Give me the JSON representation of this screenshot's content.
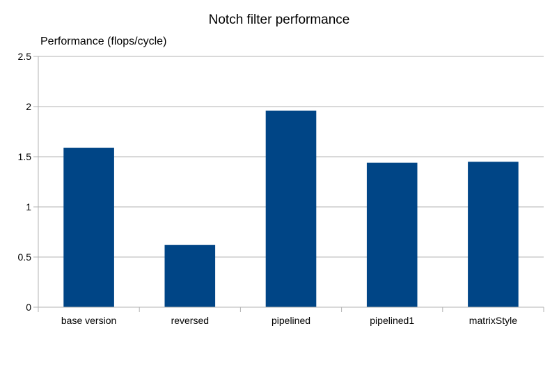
{
  "chart_data": {
    "type": "bar",
    "title": "Notch filter performance",
    "ylabel": "Performance (flops/cycle)",
    "xlabel": "",
    "categories": [
      "base version",
      "reversed",
      "pipelined",
      "pipelined1",
      "matrixStyle"
    ],
    "values": [
      1.59,
      0.62,
      1.96,
      1.44,
      1.45
    ],
    "ylim": [
      0,
      2.5
    ],
    "yticks": [
      0,
      0.5,
      1,
      1.5,
      2,
      2.5
    ],
    "ytick_labels": [
      "0",
      "0.5",
      "1",
      "1.5",
      "2",
      "2.5"
    ],
    "grid": true,
    "legend": "none",
    "colors": {
      "bar": "#004586",
      "grid": "#b3b3b3",
      "axis": "#b3b3b3"
    }
  }
}
